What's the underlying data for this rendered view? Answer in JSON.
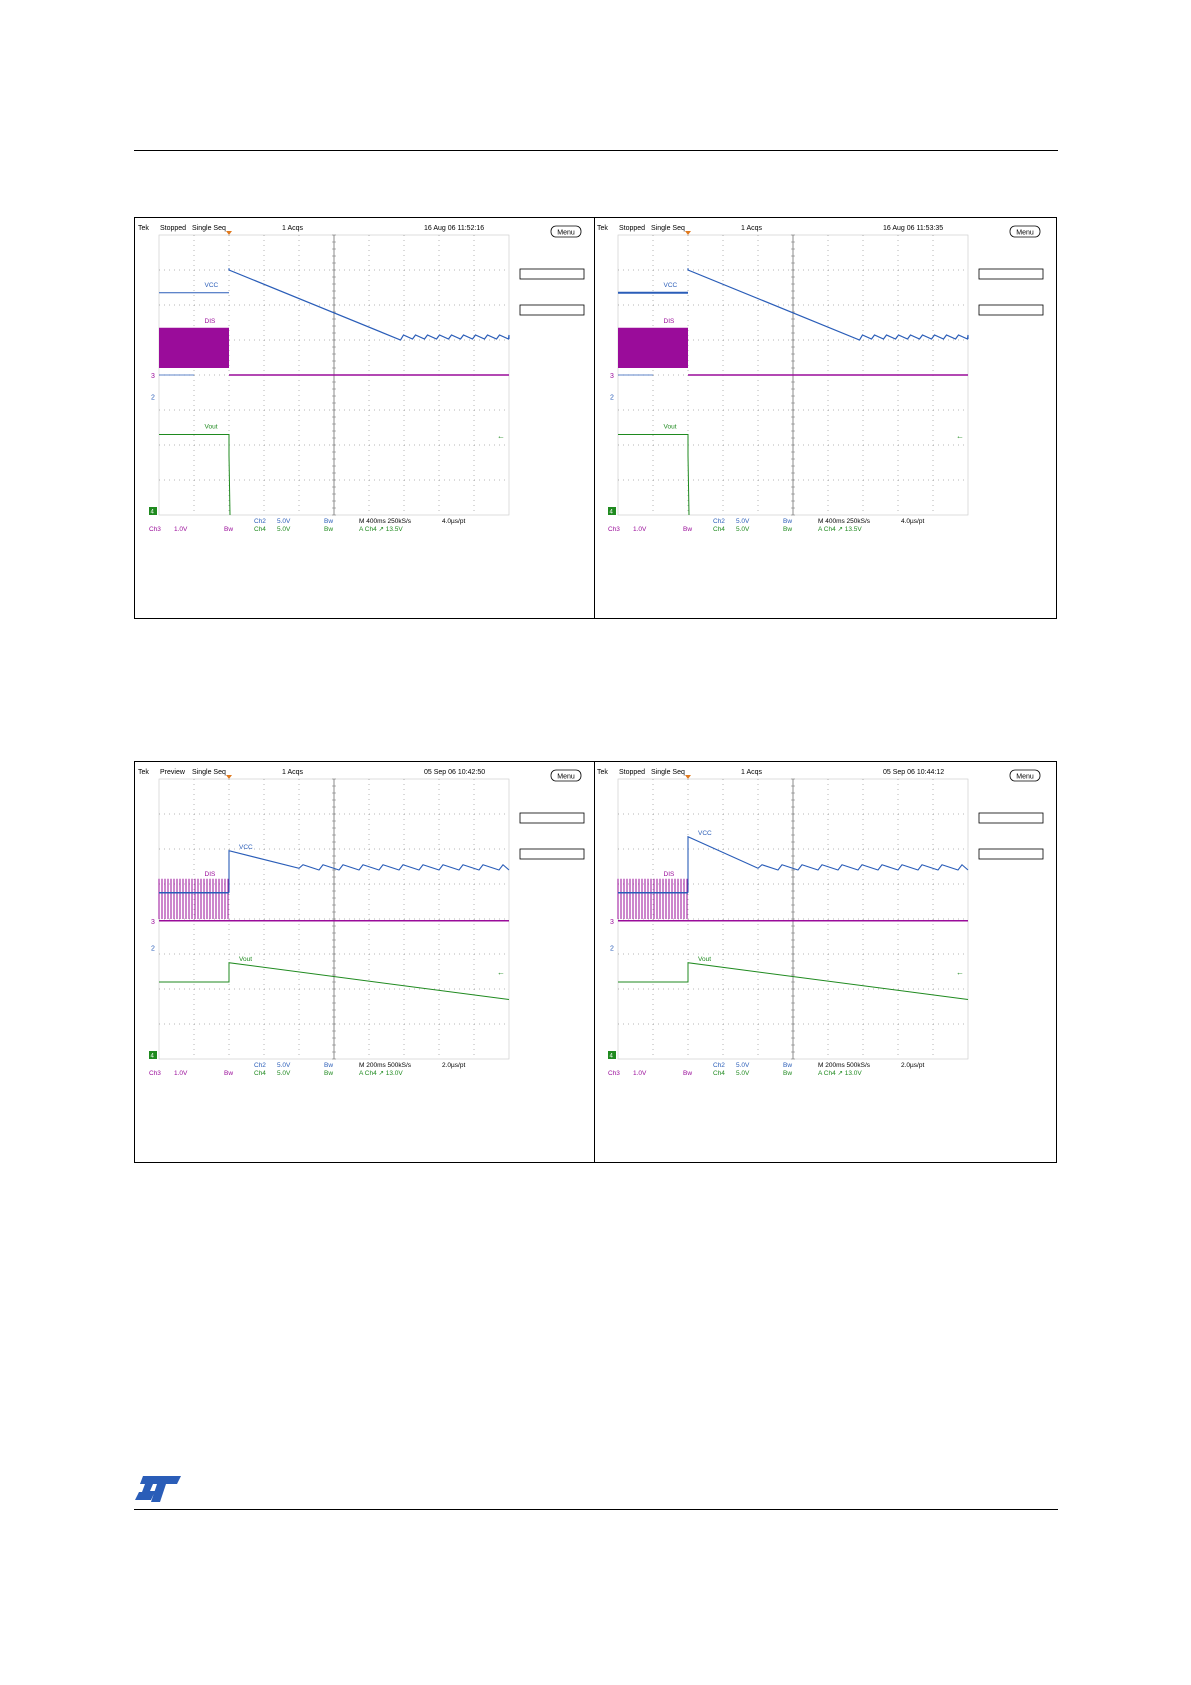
{
  "colors": {
    "vcc": "#2a5db8",
    "dis": "#9a0c9a",
    "vout": "#1f8a1f",
    "grid": "#6f6f6f",
    "text": "#000000"
  },
  "logo": {
    "icon": "st-logo-icon"
  },
  "scopes": [
    {
      "header": {
        "brand": "Tek",
        "state": "Stopped",
        "mode": "Single Seq",
        "acqs": "1 Acqs",
        "datetime": "16 Aug 06 11:52:16",
        "menu": "Menu"
      },
      "labels": {
        "vcc": "VCC",
        "dis": "DIS",
        "vout": "Vout",
        "ch3_marker": "3",
        "ch2_marker": "2",
        "ch4_marker": "4"
      },
      "footer": {
        "row1": [
          "Ch2",
          "5.0V",
          "Bw",
          "M 400ms 250kS/s",
          "4.0µs/pt"
        ],
        "row2": [
          "Ch3",
          "1.0V",
          "Bw",
          "Ch4",
          "5.0V",
          "Bw",
          "A  Ch4  ↗  13.5V"
        ]
      }
    },
    {
      "header": {
        "brand": "Tek",
        "state": "Stopped",
        "mode": "Single Seq",
        "acqs": "1 Acqs",
        "datetime": "16 Aug 06 11:53:35",
        "menu": "Menu"
      },
      "labels": {
        "vcc": "VCC",
        "dis": "DIS",
        "vout": "Vout",
        "ch3_marker": "3",
        "ch2_marker": "2",
        "ch4_marker": "4"
      },
      "footer": {
        "row1": [
          "Ch2",
          "5.0V",
          "Bw",
          "M 400ms 250kS/s",
          "4.0µs/pt"
        ],
        "row2": [
          "Ch3",
          "1.0V",
          "Bw",
          "Ch4",
          "5.0V",
          "Bw",
          "A  Ch4  ↗  13.5V"
        ]
      }
    },
    {
      "header": {
        "brand": "Tek",
        "state": "Preview",
        "mode": "Single Seq",
        "acqs": "1 Acqs",
        "datetime": "05 Sep 06 10:42:50",
        "menu": "Menu"
      },
      "labels": {
        "vcc": "VCC",
        "dis": "DIS",
        "vout": "Vout",
        "ch3_marker": "3",
        "ch2_marker": "2",
        "ch4_marker": "4"
      },
      "footer": {
        "row1": [
          "Ch2",
          "5.0V",
          "Bw",
          "M 200ms 500kS/s",
          "2.0µs/pt"
        ],
        "row2": [
          "Ch3",
          "1.0V",
          "Bw",
          "Ch4",
          "5.0V",
          "Bw",
          "A  Ch4  ↗  13.0V"
        ]
      }
    },
    {
      "header": {
        "brand": "Tek",
        "state": "Stopped",
        "mode": "Single Seq",
        "acqs": "1 Acqs",
        "datetime": "05 Sep 06 10:44:12",
        "menu": "Menu"
      },
      "labels": {
        "vcc": "VCC",
        "dis": "DIS",
        "vout": "Vout",
        "ch3_marker": "3",
        "ch2_marker": "2",
        "ch4_marker": "4"
      },
      "footer": {
        "row1": [
          "Ch2",
          "5.0V",
          "Bw",
          "M 200ms 500kS/s",
          "2.0µs/pt"
        ],
        "row2": [
          "Ch3",
          "1.0V",
          "Bw",
          "Ch4",
          "5.0V",
          "Bw",
          "A  Ch4  ↗  13.0V"
        ]
      }
    }
  ]
}
